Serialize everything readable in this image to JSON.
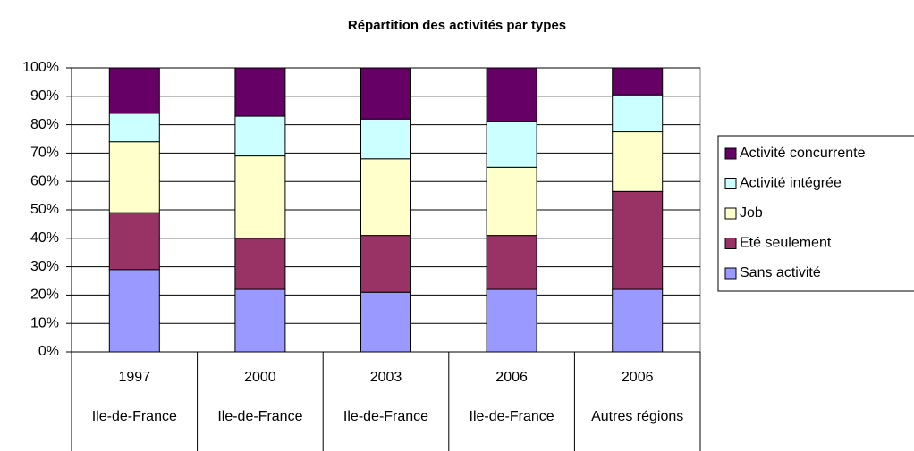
{
  "chart_data": {
    "type": "stacked_bar_percent",
    "title": "Répartition des activités par types",
    "categories": [
      "1997",
      "2000",
      "2003",
      "2006",
      "2006"
    ],
    "category_groups": [
      "Ile-de-France",
      "Ile-de-France",
      "Ile-de-France",
      "Ile-de-France",
      "Autres régions"
    ],
    "series": [
      {
        "name": "Sans activité",
        "color": "#9999ff",
        "values": [
          29,
          22,
          21,
          22,
          22
        ]
      },
      {
        "name": "Eté seulement",
        "color": "#993366",
        "values": [
          20,
          18,
          20,
          19,
          34.5
        ]
      },
      {
        "name": "Job",
        "color": "#ffffcc",
        "values": [
          25,
          29,
          27,
          24,
          21
        ]
      },
      {
        "name": "Activité intégrée",
        "color": "#ccffff",
        "values": [
          10,
          14,
          14,
          16,
          13
        ]
      },
      {
        "name": "Activité concurrente",
        "color": "#660066",
        "values": [
          16,
          17,
          18,
          19,
          9.5
        ]
      }
    ],
    "ylim": [
      0,
      100
    ],
    "yticks": [
      {
        "value": 0,
        "label": "0%"
      },
      {
        "value": 10,
        "label": "10%"
      },
      {
        "value": 20,
        "label": "20%"
      },
      {
        "value": 30,
        "label": "30%"
      },
      {
        "value": 40,
        "label": "40%"
      },
      {
        "value": 50,
        "label": "50%"
      },
      {
        "value": 60,
        "label": "60%"
      },
      {
        "value": 70,
        "label": "70%"
      },
      {
        "value": 80,
        "label": "80%"
      },
      {
        "value": 90,
        "label": "90%"
      },
      {
        "value": 100,
        "label": "100%"
      }
    ],
    "grid": true,
    "legend": "right"
  }
}
